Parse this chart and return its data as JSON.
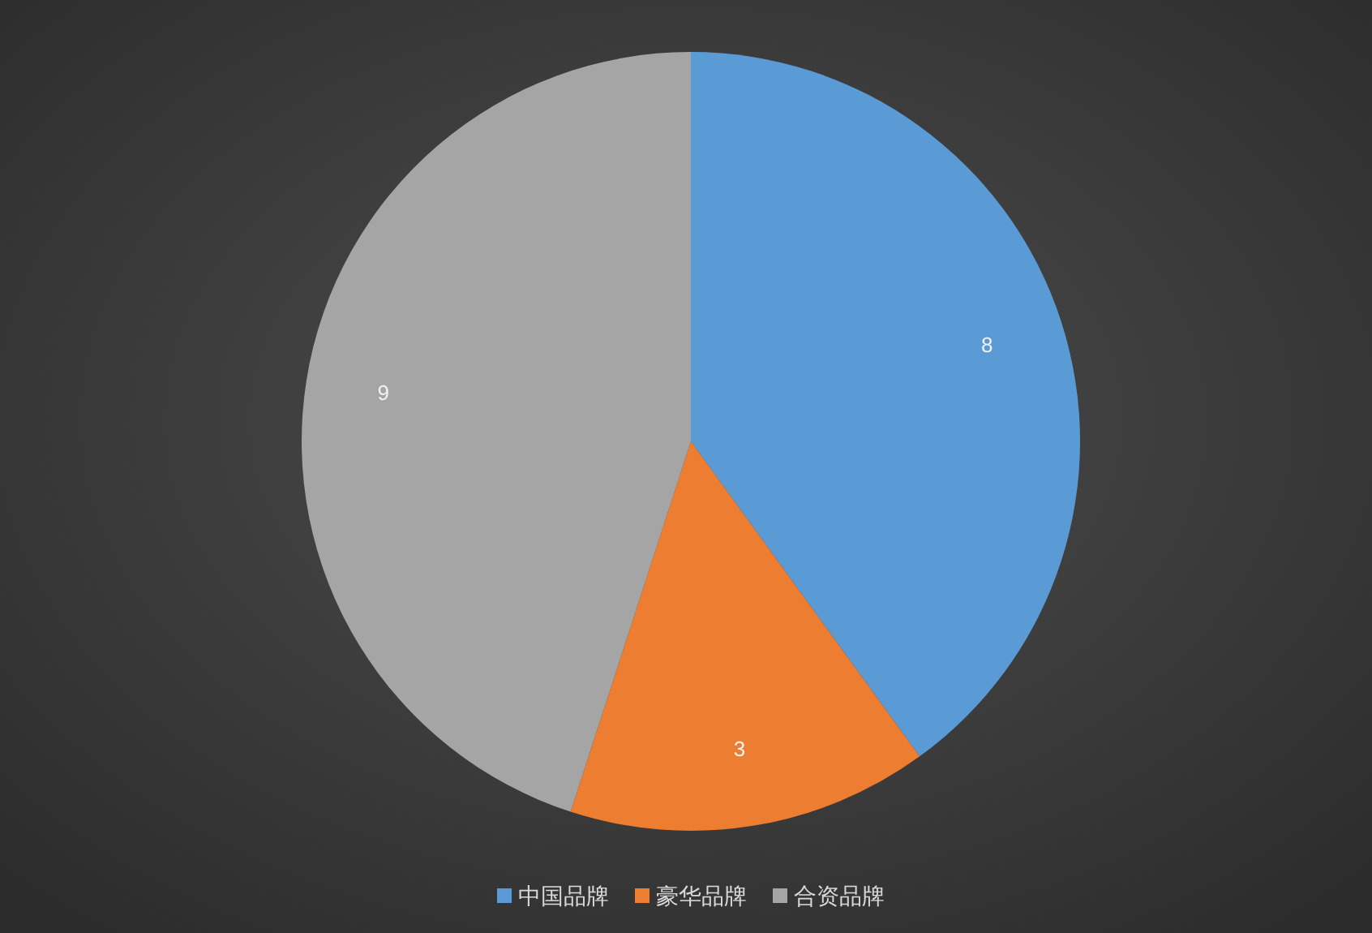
{
  "chart_data": {
    "type": "pie",
    "categories": [
      "中国品牌",
      "豪华品牌",
      "合资品牌"
    ],
    "values": [
      8,
      3,
      9
    ],
    "colors": [
      "#5b9bd5",
      "#ed7d31",
      "#a5a5a5"
    ],
    "data_labels": true,
    "legend": "bottom"
  }
}
